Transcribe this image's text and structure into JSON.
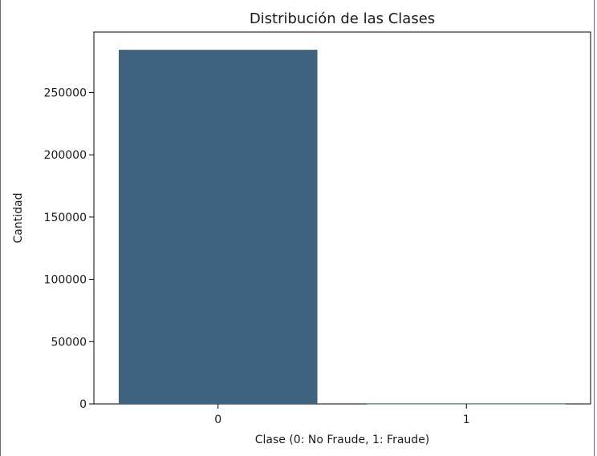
{
  "chart_data": {
    "type": "bar",
    "title": "Distribución de las Clases",
    "xlabel": "Clase (0: No Fraude, 1: Fraude)",
    "ylabel": "Cantidad",
    "categories": [
      "0",
      "1"
    ],
    "values": [
      284315,
      492
    ],
    "ylim": [
      0,
      298552
    ],
    "yticks": [
      0,
      50000,
      100000,
      150000,
      200000,
      250000
    ],
    "ytick_labels": [
      "0",
      "50000",
      "100000",
      "150000",
      "200000",
      "250000"
    ],
    "colors": [
      "#3f637e",
      "#3a8c7a"
    ],
    "grid": false
  }
}
